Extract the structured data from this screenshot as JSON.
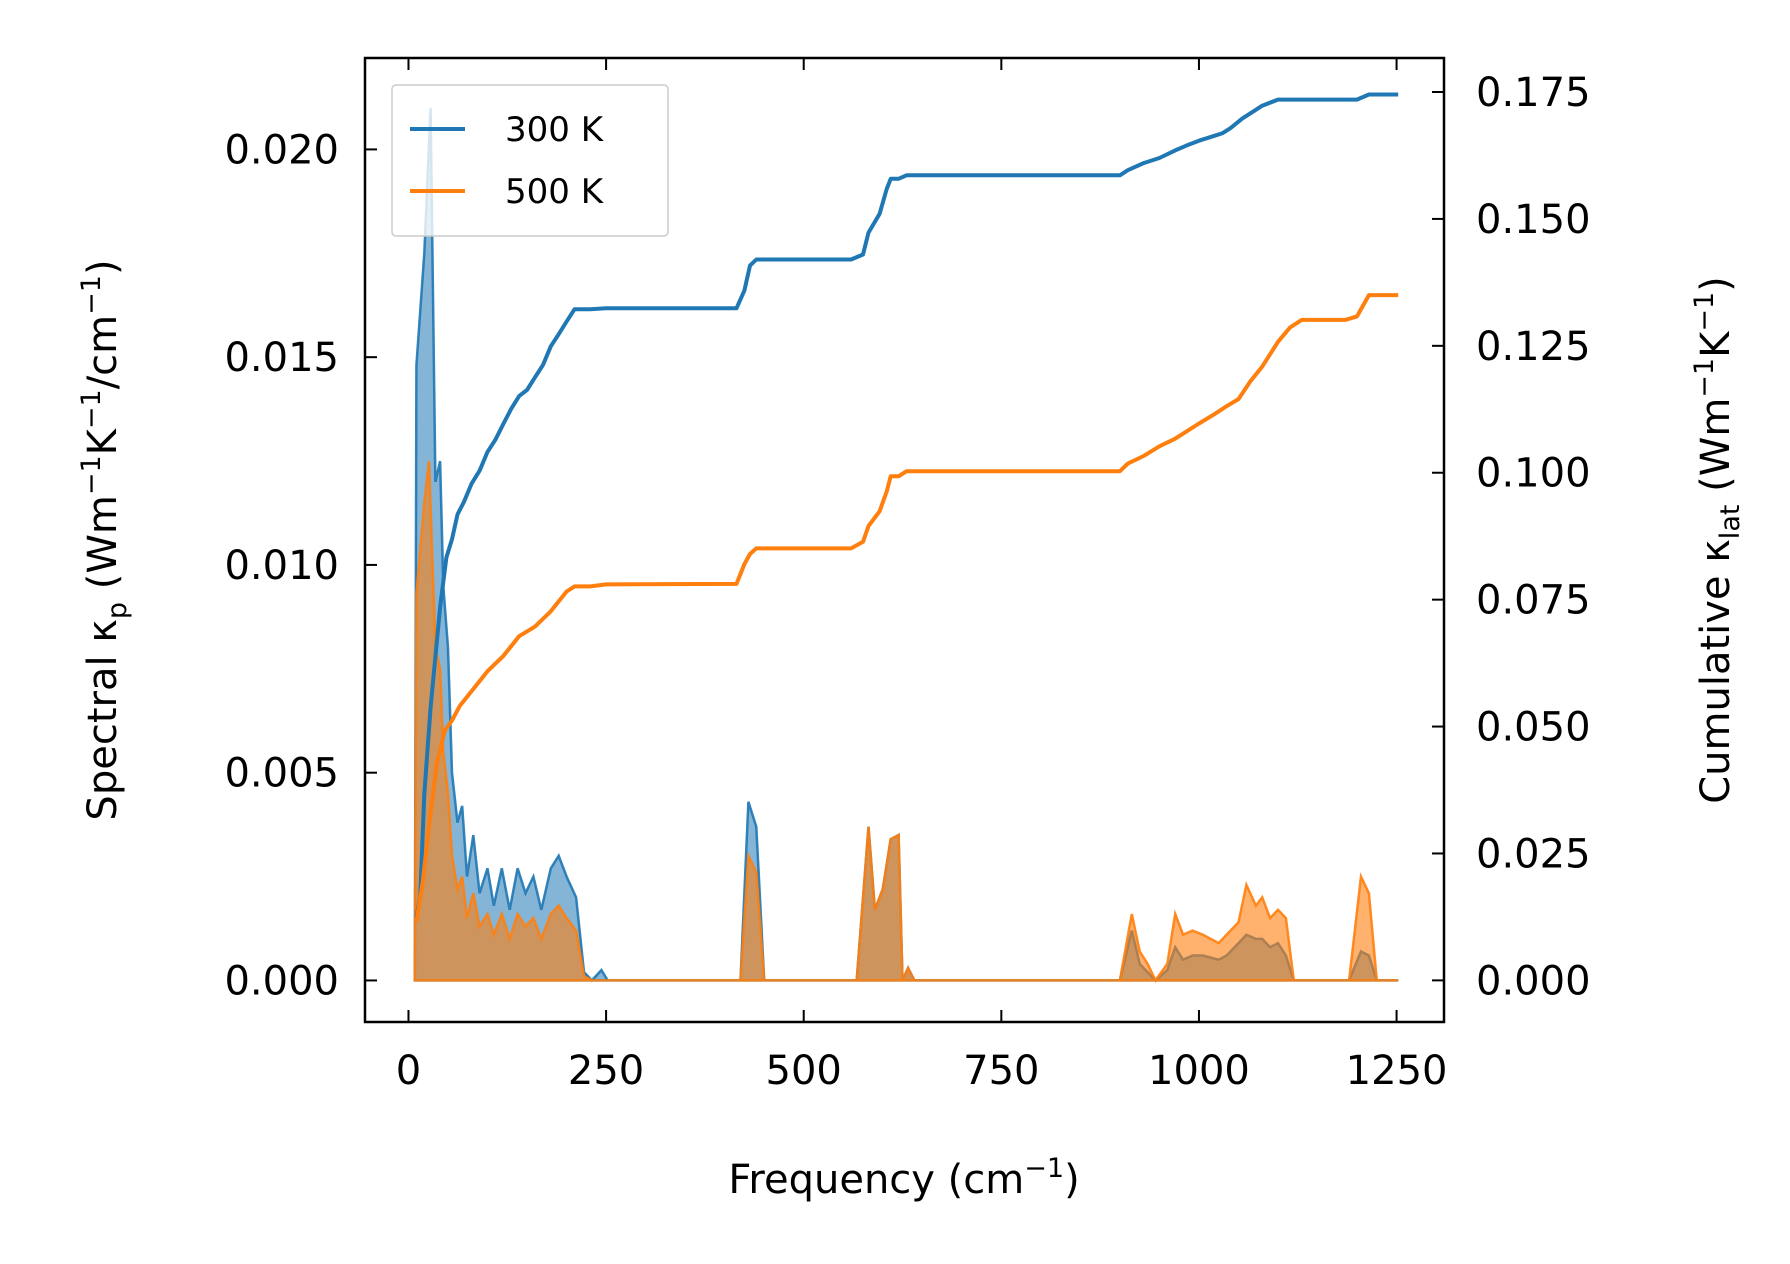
{
  "chart_data": {
    "type": "area",
    "xlabel": "Frequency (cm",
    "xlabel_sup": "−1",
    "xlabel_end": ")",
    "ylabel_left": "Spectral κ",
    "ylabel_left_sub": "p",
    "ylabel_left_rest": " (Wm",
    "ylabel_left_sup1": "−1",
    "ylabel_left_mid": "K",
    "ylabel_left_sup2": "−1",
    "ylabel_left_mid2": "/cm",
    "ylabel_left_sup3": "−1",
    "ylabel_left_end": ")",
    "ylabel_right": "Cumulative κ",
    "ylabel_right_sub": "lat",
    "ylabel_right_rest": " (Wm",
    "ylabel_right_sup1": "−1",
    "ylabel_right_mid": "K",
    "ylabel_right_sup2": "−1",
    "ylabel_right_end": ")",
    "xlim": [
      -55,
      1310
    ],
    "ylim_left": [
      -0.001,
      0.0222
    ],
    "ylim_right": [
      -0.0082,
      0.1817
    ],
    "x_ticks": [
      0,
      250,
      500,
      750,
      1000,
      1250
    ],
    "x_tick_labels": [
      "0",
      "250",
      "500",
      "750",
      "1000",
      "1250"
    ],
    "y_left_ticks": [
      0.0,
      0.005,
      0.01,
      0.015,
      0.02
    ],
    "y_left_tick_labels": [
      "0.000",
      "0.005",
      "0.010",
      "0.015",
      "0.020"
    ],
    "y_right_ticks": [
      0.0,
      0.025,
      0.05,
      0.075,
      0.1,
      0.125,
      0.15,
      0.175
    ],
    "y_right_tick_labels": [
      "0.000",
      "0.025",
      "0.050",
      "0.075",
      "0.100",
      "0.125",
      "0.150",
      "0.175"
    ],
    "legend": {
      "position": "top-left",
      "entries": [
        "300 K",
        "500 K"
      ]
    },
    "colors": {
      "300K": "#1f77b4",
      "500K": "#ff7f0e"
    },
    "series": [
      {
        "name": "300 K",
        "spectral": [
          [
            8,
            0
          ],
          [
            10,
            0.0148
          ],
          [
            20,
            0.0175
          ],
          [
            28,
            0.021
          ],
          [
            34,
            0.012
          ],
          [
            40,
            0.0125
          ],
          [
            44,
            0.0095
          ],
          [
            50,
            0.008
          ],
          [
            55,
            0.005
          ],
          [
            62,
            0.0038
          ],
          [
            68,
            0.0042
          ],
          [
            74,
            0.0025
          ],
          [
            82,
            0.0035
          ],
          [
            90,
            0.0021
          ],
          [
            100,
            0.0027
          ],
          [
            108,
            0.0018
          ],
          [
            118,
            0.0027
          ],
          [
            128,
            0.0017
          ],
          [
            138,
            0.0027
          ],
          [
            148,
            0.0021
          ],
          [
            158,
            0.0025
          ],
          [
            168,
            0.0017
          ],
          [
            180,
            0.0027
          ],
          [
            190,
            0.003
          ],
          [
            200,
            0.0025
          ],
          [
            212,
            0.002
          ],
          [
            222,
            0.0002
          ],
          [
            232,
            0
          ],
          [
            244,
            0.00025
          ],
          [
            252,
            0
          ],
          [
            420,
            0
          ],
          [
            430,
            0.0043
          ],
          [
            440,
            0.0037
          ],
          [
            450,
            0
          ],
          [
            567,
            0
          ],
          [
            582,
            0.0037
          ],
          [
            590,
            0.0017
          ],
          [
            600,
            0.0022
          ],
          [
            610,
            0.0034
          ],
          [
            620,
            0.0035
          ],
          [
            625,
            0
          ],
          [
            632,
            0.0003
          ],
          [
            640,
            0
          ],
          [
            900,
            0
          ],
          [
            915,
            0.0012
          ],
          [
            925,
            0.0004
          ],
          [
            935,
            0.0002
          ],
          [
            945,
            0
          ],
          [
            960,
            0.00025
          ],
          [
            970,
            0.0008
          ],
          [
            980,
            0.0005
          ],
          [
            992,
            0.0006
          ],
          [
            1005,
            0.0006
          ],
          [
            1025,
            0.0005
          ],
          [
            1035,
            0.0006
          ],
          [
            1050,
            0.0009
          ],
          [
            1060,
            0.0011
          ],
          [
            1072,
            0.001
          ],
          [
            1080,
            0.001
          ],
          [
            1090,
            0.0008
          ],
          [
            1100,
            0.0009
          ],
          [
            1110,
            0.0006
          ],
          [
            1120,
            0
          ],
          [
            1190,
            0
          ],
          [
            1205,
            0.0007
          ],
          [
            1215,
            0.0006
          ],
          [
            1225,
            0
          ],
          [
            1252,
            0
          ]
        ],
        "cumulative": [
          [
            10,
            0.0123
          ],
          [
            15,
            0.0166
          ],
          [
            20,
            0.0367
          ],
          [
            28,
            0.0538
          ],
          [
            40,
            0.0735
          ],
          [
            48,
            0.0833
          ],
          [
            55,
            0.0869
          ],
          [
            62,
            0.0918
          ],
          [
            70,
            0.0942
          ],
          [
            80,
            0.0979
          ],
          [
            90,
            0.1004
          ],
          [
            100,
            0.1041
          ],
          [
            110,
            0.1065
          ],
          [
            120,
            0.1096
          ],
          [
            130,
            0.1126
          ],
          [
            140,
            0.1151
          ],
          [
            150,
            0.1163
          ],
          [
            160,
            0.1188
          ],
          [
            170,
            0.1212
          ],
          [
            180,
            0.1249
          ],
          [
            190,
            0.1273
          ],
          [
            200,
            0.1298
          ],
          [
            210,
            0.1322
          ],
          [
            230,
            0.1322
          ],
          [
            250,
            0.1324
          ],
          [
            415,
            0.1324
          ],
          [
            425,
            0.1359
          ],
          [
            432,
            0.1408
          ],
          [
            440,
            0.142
          ],
          [
            560,
            0.142
          ],
          [
            575,
            0.143
          ],
          [
            582,
            0.1473
          ],
          [
            596,
            0.151
          ],
          [
            605,
            0.1559
          ],
          [
            610,
            0.1579
          ],
          [
            620,
            0.1579
          ],
          [
            630,
            0.1586
          ],
          [
            900,
            0.1586
          ],
          [
            910,
            0.1596
          ],
          [
            930,
            0.161
          ],
          [
            950,
            0.162
          ],
          [
            970,
            0.1635
          ],
          [
            985,
            0.1645
          ],
          [
            1000,
            0.1654
          ],
          [
            1020,
            0.1664
          ],
          [
            1030,
            0.1669
          ],
          [
            1040,
            0.1679
          ],
          [
            1055,
            0.1698
          ],
          [
            1070,
            0.1713
          ],
          [
            1080,
            0.1723
          ],
          [
            1100,
            0.1735
          ],
          [
            1200,
            0.1735
          ],
          [
            1215,
            0.1745
          ],
          [
            1252,
            0.1745
          ]
        ]
      },
      {
        "name": "500 K",
        "spectral": [
          [
            8,
            0
          ],
          [
            10,
            0.0093
          ],
          [
            20,
            0.0115
          ],
          [
            26,
            0.0125
          ],
          [
            34,
            0.008
          ],
          [
            40,
            0.0075
          ],
          [
            44,
            0.0055
          ],
          [
            50,
            0.0045
          ],
          [
            55,
            0.003
          ],
          [
            62,
            0.0022
          ],
          [
            68,
            0.0025
          ],
          [
            74,
            0.0015
          ],
          [
            82,
            0.0021
          ],
          [
            90,
            0.0013
          ],
          [
            100,
            0.0016
          ],
          [
            108,
            0.0011
          ],
          [
            118,
            0.0016
          ],
          [
            128,
            0.001
          ],
          [
            138,
            0.0016
          ],
          [
            148,
            0.0013
          ],
          [
            158,
            0.0015
          ],
          [
            168,
            0.001
          ],
          [
            180,
            0.0016
          ],
          [
            190,
            0.0018
          ],
          [
            200,
            0.0015
          ],
          [
            212,
            0.0012
          ],
          [
            222,
            0.0001
          ],
          [
            232,
            0
          ],
          [
            420,
            0
          ],
          [
            430,
            0.003
          ],
          [
            440,
            0.0026
          ],
          [
            450,
            0
          ],
          [
            567,
            0
          ],
          [
            582,
            0.0037
          ],
          [
            590,
            0.0017
          ],
          [
            600,
            0.0022
          ],
          [
            610,
            0.0034
          ],
          [
            620,
            0.0035
          ],
          [
            625,
            0
          ],
          [
            632,
            0.0003
          ],
          [
            640,
            0
          ],
          [
            900,
            0
          ],
          [
            915,
            0.0016
          ],
          [
            925,
            0.0007
          ],
          [
            935,
            0.0004
          ],
          [
            945,
            0
          ],
          [
            960,
            0.0004
          ],
          [
            970,
            0.0016
          ],
          [
            980,
            0.0011
          ],
          [
            992,
            0.0012
          ],
          [
            1005,
            0.0011
          ],
          [
            1025,
            0.0009
          ],
          [
            1035,
            0.0011
          ],
          [
            1050,
            0.0014
          ],
          [
            1060,
            0.0023
          ],
          [
            1072,
            0.0018
          ],
          [
            1080,
            0.002
          ],
          [
            1090,
            0.0015
          ],
          [
            1100,
            0.0017
          ],
          [
            1110,
            0.0015
          ],
          [
            1120,
            0
          ],
          [
            1190,
            0
          ],
          [
            1205,
            0.0025
          ],
          [
            1215,
            0.0021
          ],
          [
            1225,
            0
          ],
          [
            1252,
            0
          ]
        ],
        "cumulative": [
          [
            10,
            0.0116
          ],
          [
            18,
            0.0193
          ],
          [
            26,
            0.0305
          ],
          [
            36,
            0.0428
          ],
          [
            46,
            0.0492
          ],
          [
            55,
            0.0512
          ],
          [
            65,
            0.0541
          ],
          [
            80,
            0.057
          ],
          [
            100,
            0.0609
          ],
          [
            120,
            0.0639
          ],
          [
            140,
            0.0678
          ],
          [
            160,
            0.0697
          ],
          [
            180,
            0.0727
          ],
          [
            200,
            0.0766
          ],
          [
            210,
            0.0776
          ],
          [
            230,
            0.0776
          ],
          [
            250,
            0.078
          ],
          [
            415,
            0.0781
          ],
          [
            425,
            0.082
          ],
          [
            432,
            0.084
          ],
          [
            440,
            0.0851
          ],
          [
            560,
            0.0851
          ],
          [
            575,
            0.0864
          ],
          [
            582,
            0.0895
          ],
          [
            596,
            0.0924
          ],
          [
            605,
            0.0963
          ],
          [
            610,
            0.0993
          ],
          [
            620,
            0.0993
          ],
          [
            630,
            0.1003
          ],
          [
            900,
            0.1003
          ],
          [
            910,
            0.1018
          ],
          [
            930,
            0.1033
          ],
          [
            950,
            0.1052
          ],
          [
            970,
            0.1067
          ],
          [
            985,
            0.1082
          ],
          [
            1000,
            0.1097
          ],
          [
            1020,
            0.1116
          ],
          [
            1035,
            0.1131
          ],
          [
            1050,
            0.1145
          ],
          [
            1065,
            0.118
          ],
          [
            1080,
            0.1209
          ],
          [
            1100,
            0.1258
          ],
          [
            1115,
            0.1286
          ],
          [
            1130,
            0.1301
          ],
          [
            1185,
            0.1301
          ],
          [
            1200,
            0.1308
          ],
          [
            1215,
            0.135
          ],
          [
            1252,
            0.135
          ]
        ]
      }
    ]
  }
}
